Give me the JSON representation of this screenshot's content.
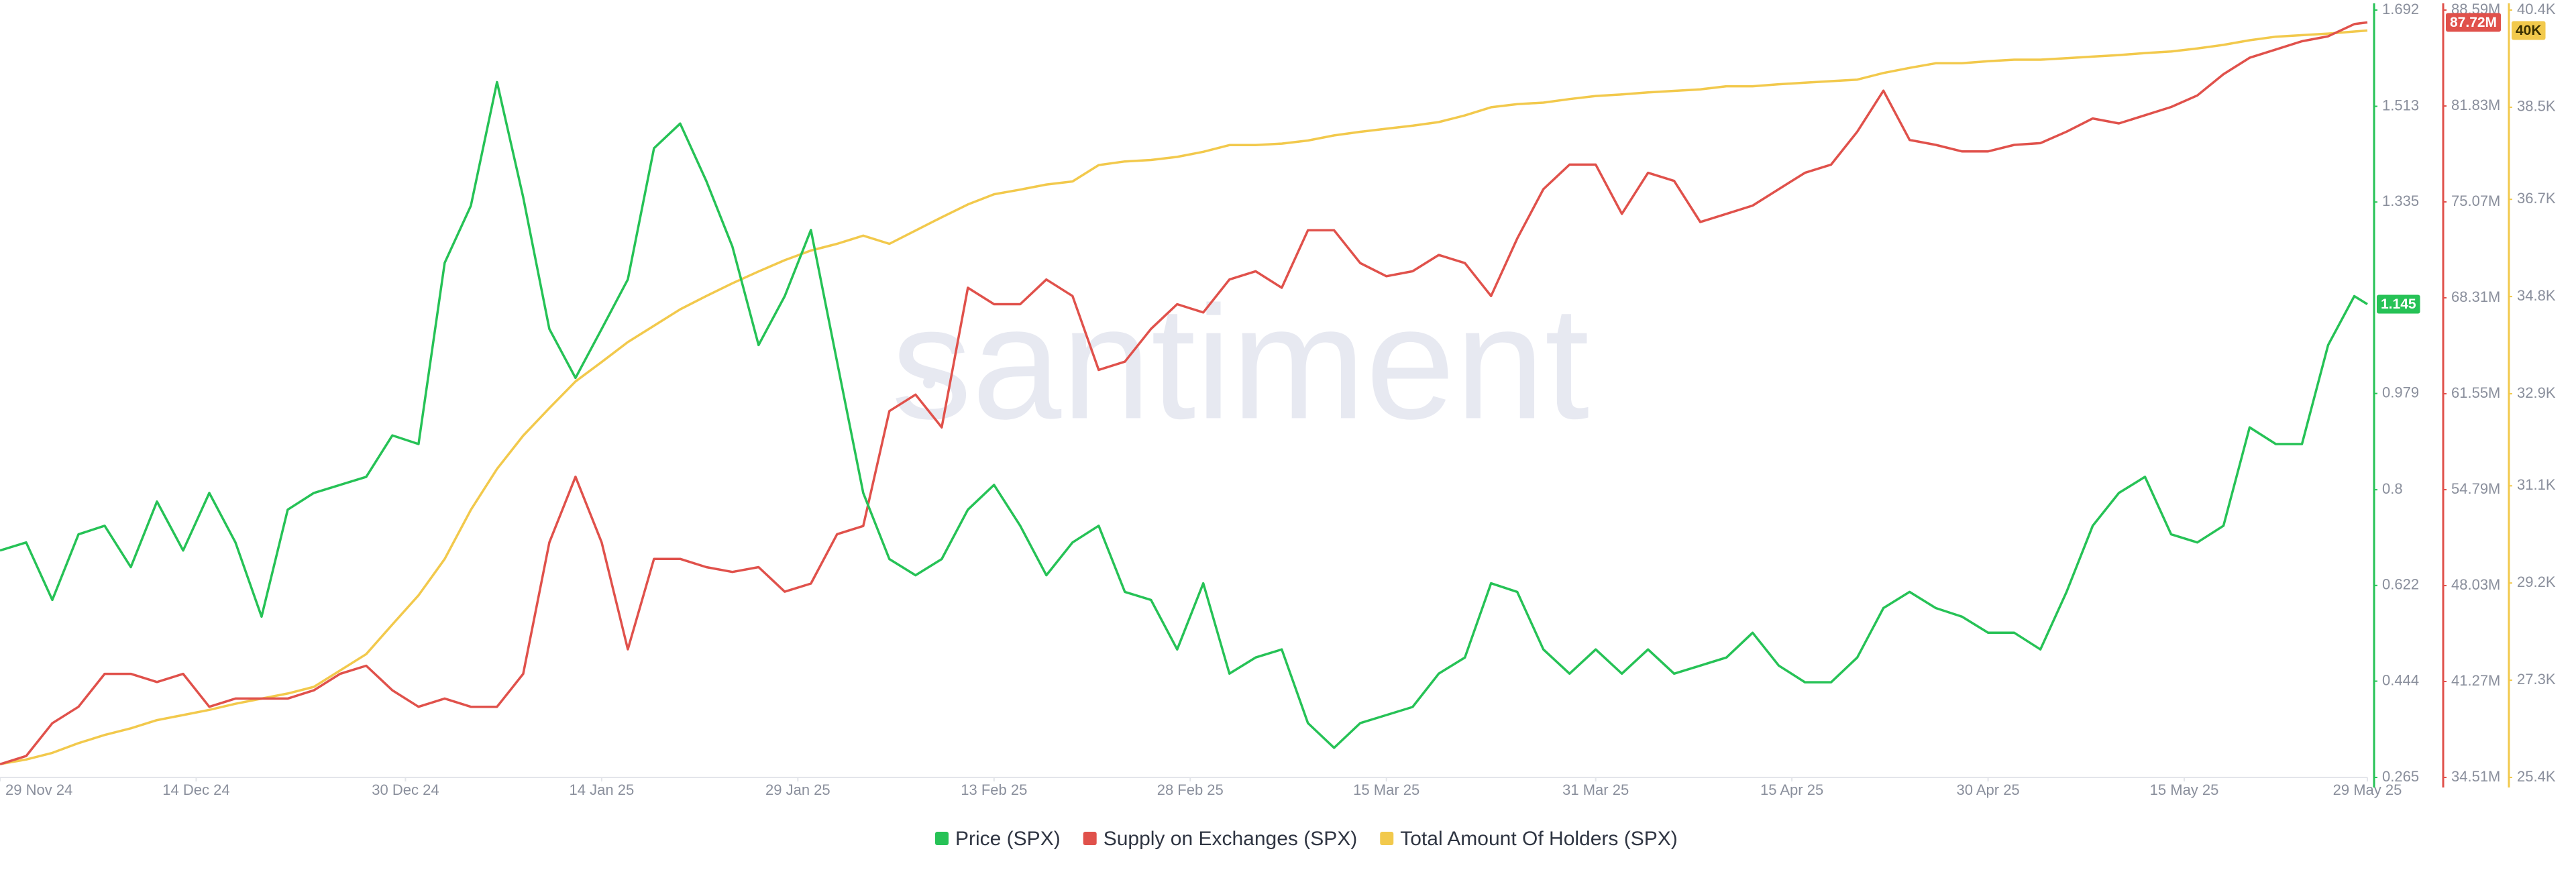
{
  "chart_data": {
    "type": "line",
    "watermark": "santiment",
    "x": [
      "2024-11-29",
      "2024-12-01",
      "2024-12-03",
      "2024-12-05",
      "2024-12-07",
      "2024-12-09",
      "2024-12-11",
      "2024-12-13",
      "2024-12-15",
      "2024-12-17",
      "2024-12-19",
      "2024-12-21",
      "2024-12-23",
      "2024-12-25",
      "2024-12-27",
      "2024-12-29",
      "2024-12-31",
      "2025-01-02",
      "2025-01-04",
      "2025-01-06",
      "2025-01-08",
      "2025-01-10",
      "2025-01-12",
      "2025-01-14",
      "2025-01-16",
      "2025-01-18",
      "2025-01-20",
      "2025-01-22",
      "2025-01-24",
      "2025-01-26",
      "2025-01-28",
      "2025-01-30",
      "2025-02-01",
      "2025-02-03",
      "2025-02-05",
      "2025-02-07",
      "2025-02-09",
      "2025-02-11",
      "2025-02-13",
      "2025-02-15",
      "2025-02-17",
      "2025-02-19",
      "2025-02-21",
      "2025-02-23",
      "2025-02-25",
      "2025-02-27",
      "2025-03-01",
      "2025-03-03",
      "2025-03-05",
      "2025-03-07",
      "2025-03-09",
      "2025-03-11",
      "2025-03-13",
      "2025-03-15",
      "2025-03-17",
      "2025-03-19",
      "2025-03-21",
      "2025-03-23",
      "2025-03-25",
      "2025-03-27",
      "2025-03-29",
      "2025-03-31",
      "2025-04-02",
      "2025-04-04",
      "2025-04-06",
      "2025-04-08",
      "2025-04-10",
      "2025-04-12",
      "2025-04-14",
      "2025-04-16",
      "2025-04-18",
      "2025-04-20",
      "2025-04-22",
      "2025-04-24",
      "2025-04-26",
      "2025-04-28",
      "2025-04-30",
      "2025-05-02",
      "2025-05-04",
      "2025-05-06",
      "2025-05-08",
      "2025-05-10",
      "2025-05-12",
      "2025-05-14",
      "2025-05-16",
      "2025-05-18",
      "2025-05-20",
      "2025-05-22",
      "2025-05-24",
      "2025-05-26",
      "2025-05-28",
      "2025-05-29"
    ],
    "xlim": [
      "2024-11-29",
      "2025-05-29"
    ],
    "xticks": [
      {
        "value": "2024-11-29",
        "label": "29 Nov 24"
      },
      {
        "value": "2024-12-14",
        "label": "14 Dec 24"
      },
      {
        "value": "2024-12-30",
        "label": "30 Dec 24"
      },
      {
        "value": "2025-01-14",
        "label": "14 Jan 25"
      },
      {
        "value": "2025-01-29",
        "label": "29 Jan 25"
      },
      {
        "value": "2025-02-13",
        "label": "13 Feb 25"
      },
      {
        "value": "2025-02-28",
        "label": "28 Feb 25"
      },
      {
        "value": "2025-03-15",
        "label": "15 Mar 25"
      },
      {
        "value": "2025-03-31",
        "label": "31 Mar 25"
      },
      {
        "value": "2025-04-15",
        "label": "15 Apr 25"
      },
      {
        "value": "2025-04-30",
        "label": "30 Apr 25"
      },
      {
        "value": "2025-05-15",
        "label": "15 May 25"
      },
      {
        "value": "2025-05-29",
        "label": "29 May 25"
      }
    ],
    "ylim": [
      0.265,
      1.692
    ],
    "yticks": [
      0.265,
      0.444,
      0.622,
      0.8,
      0.979,
      1.335,
      1.513,
      1.692
    ],
    "y2lim": [
      34.51,
      88.59
    ],
    "y2ticks": [
      {
        "value": 34.51,
        "label": "34.51M"
      },
      {
        "value": 41.27,
        "label": "41.27M"
      },
      {
        "value": 48.03,
        "label": "48.03M"
      },
      {
        "value": 54.79,
        "label": "54.79M"
      },
      {
        "value": 61.55,
        "label": "61.55M"
      },
      {
        "value": 68.31,
        "label": "68.31M"
      },
      {
        "value": 75.07,
        "label": "75.07M"
      },
      {
        "value": 81.83,
        "label": "81.83M"
      },
      {
        "value": 88.59,
        "label": "88.59M"
      }
    ],
    "y3lim": [
      25.4,
      40.4
    ],
    "y3ticks": [
      {
        "value": 25.4,
        "label": "25.4K"
      },
      {
        "value": 27.3,
        "label": "27.3K"
      },
      {
        "value": 29.2,
        "label": "29.2K"
      },
      {
        "value": 31.1,
        "label": "31.1K"
      },
      {
        "value": 32.9,
        "label": "32.9K"
      },
      {
        "value": 34.8,
        "label": "34.8K"
      },
      {
        "value": 36.7,
        "label": "36.7K"
      },
      {
        "value": 38.5,
        "label": "38.5K"
      },
      {
        "value": 40.4,
        "label": "40.4K"
      }
    ],
    "series": [
      {
        "name": "Price (SPX)",
        "color": "#26c256",
        "axis": "y",
        "current": {
          "value": 1.145,
          "label": "1.145"
        },
        "values": [
          0.687,
          0.702,
          0.595,
          0.717,
          0.733,
          0.656,
          0.778,
          0.687,
          0.794,
          0.702,
          0.564,
          0.763,
          0.794,
          0.809,
          0.824,
          0.901,
          0.885,
          1.222,
          1.328,
          1.558,
          1.344,
          1.099,
          1.008,
          1.099,
          1.191,
          1.435,
          1.481,
          1.374,
          1.252,
          1.069,
          1.16,
          1.283,
          1.038,
          0.794,
          0.671,
          0.641,
          0.671,
          0.763,
          0.809,
          0.733,
          0.641,
          0.702,
          0.733,
          0.61,
          0.595,
          0.503,
          0.626,
          0.458,
          0.488,
          0.503,
          0.366,
          0.32,
          0.366,
          0.381,
          0.396,
          0.458,
          0.488,
          0.626,
          0.61,
          0.503,
          0.458,
          0.503,
          0.458,
          0.503,
          0.458,
          0.473,
          0.488,
          0.534,
          0.473,
          0.442,
          0.442,
          0.488,
          0.58,
          0.61,
          0.58,
          0.564,
          0.534,
          0.534,
          0.503,
          0.61,
          0.733,
          0.794,
          0.824,
          0.717,
          0.702,
          0.733,
          0.916,
          0.885,
          0.885,
          1.069,
          1.16,
          1.145
        ]
      },
      {
        "name": "Supply on Exchanges (SPX)",
        "color": "#e0514b",
        "axis": "y2",
        "current": {
          "value": 87.72,
          "label": "87.72M"
        },
        "values": [
          35.44,
          36.02,
          38.33,
          39.49,
          41.81,
          41.81,
          41.23,
          41.81,
          39.49,
          40.07,
          40.07,
          40.07,
          40.65,
          41.81,
          42.38,
          40.65,
          39.49,
          40.07,
          39.49,
          39.49,
          41.81,
          51.07,
          55.7,
          51.07,
          43.54,
          49.91,
          49.91,
          49.33,
          48.99,
          49.33,
          47.6,
          48.17,
          51.65,
          52.23,
          60.33,
          61.49,
          59.18,
          69.02,
          67.86,
          67.86,
          69.6,
          68.44,
          63.23,
          63.81,
          66.12,
          67.86,
          67.28,
          69.6,
          70.18,
          69.02,
          73.07,
          73.07,
          70.76,
          69.83,
          70.18,
          71.33,
          70.76,
          68.44,
          72.49,
          75.97,
          77.7,
          77.7,
          74.23,
          77.12,
          76.55,
          73.65,
          74.23,
          74.81,
          75.97,
          77.12,
          77.7,
          80.02,
          82.91,
          79.44,
          79.09,
          78.63,
          78.63,
          79.09,
          79.21,
          80.02,
          80.95,
          80.6,
          81.18,
          81.76,
          82.57,
          84.07,
          85.23,
          85.81,
          86.39,
          86.74,
          87.6,
          87.72
        ]
      },
      {
        "name": "Total Amount Of Holders (SPX)",
        "color": "#f2c94c",
        "axis": "y3",
        "current": {
          "value": 40,
          "label": "40K"
        },
        "values": [
          25.66,
          25.75,
          25.88,
          26.07,
          26.23,
          26.36,
          26.52,
          26.62,
          26.72,
          26.84,
          26.94,
          27.04,
          27.17,
          27.49,
          27.81,
          28.39,
          28.96,
          29.67,
          30.63,
          31.43,
          32.08,
          32.62,
          33.14,
          33.52,
          33.91,
          34.23,
          34.55,
          34.81,
          35.06,
          35.29,
          35.51,
          35.7,
          35.83,
          35.99,
          35.83,
          36.09,
          36.35,
          36.6,
          36.8,
          36.89,
          36.99,
          37.05,
          37.37,
          37.44,
          37.47,
          37.53,
          37.63,
          37.76,
          37.76,
          37.79,
          37.85,
          37.95,
          38.02,
          38.08,
          38.14,
          38.21,
          38.34,
          38.5,
          38.56,
          38.59,
          38.66,
          38.72,
          38.75,
          38.79,
          38.82,
          38.85,
          38.91,
          38.91,
          38.95,
          38.98,
          39.01,
          39.04,
          39.17,
          39.27,
          39.36,
          39.36,
          39.4,
          39.43,
          39.43,
          39.46,
          39.49,
          39.52,
          39.56,
          39.59,
          39.65,
          39.72,
          39.81,
          39.88,
          39.91,
          39.94,
          39.98,
          40
        ]
      }
    ]
  }
}
